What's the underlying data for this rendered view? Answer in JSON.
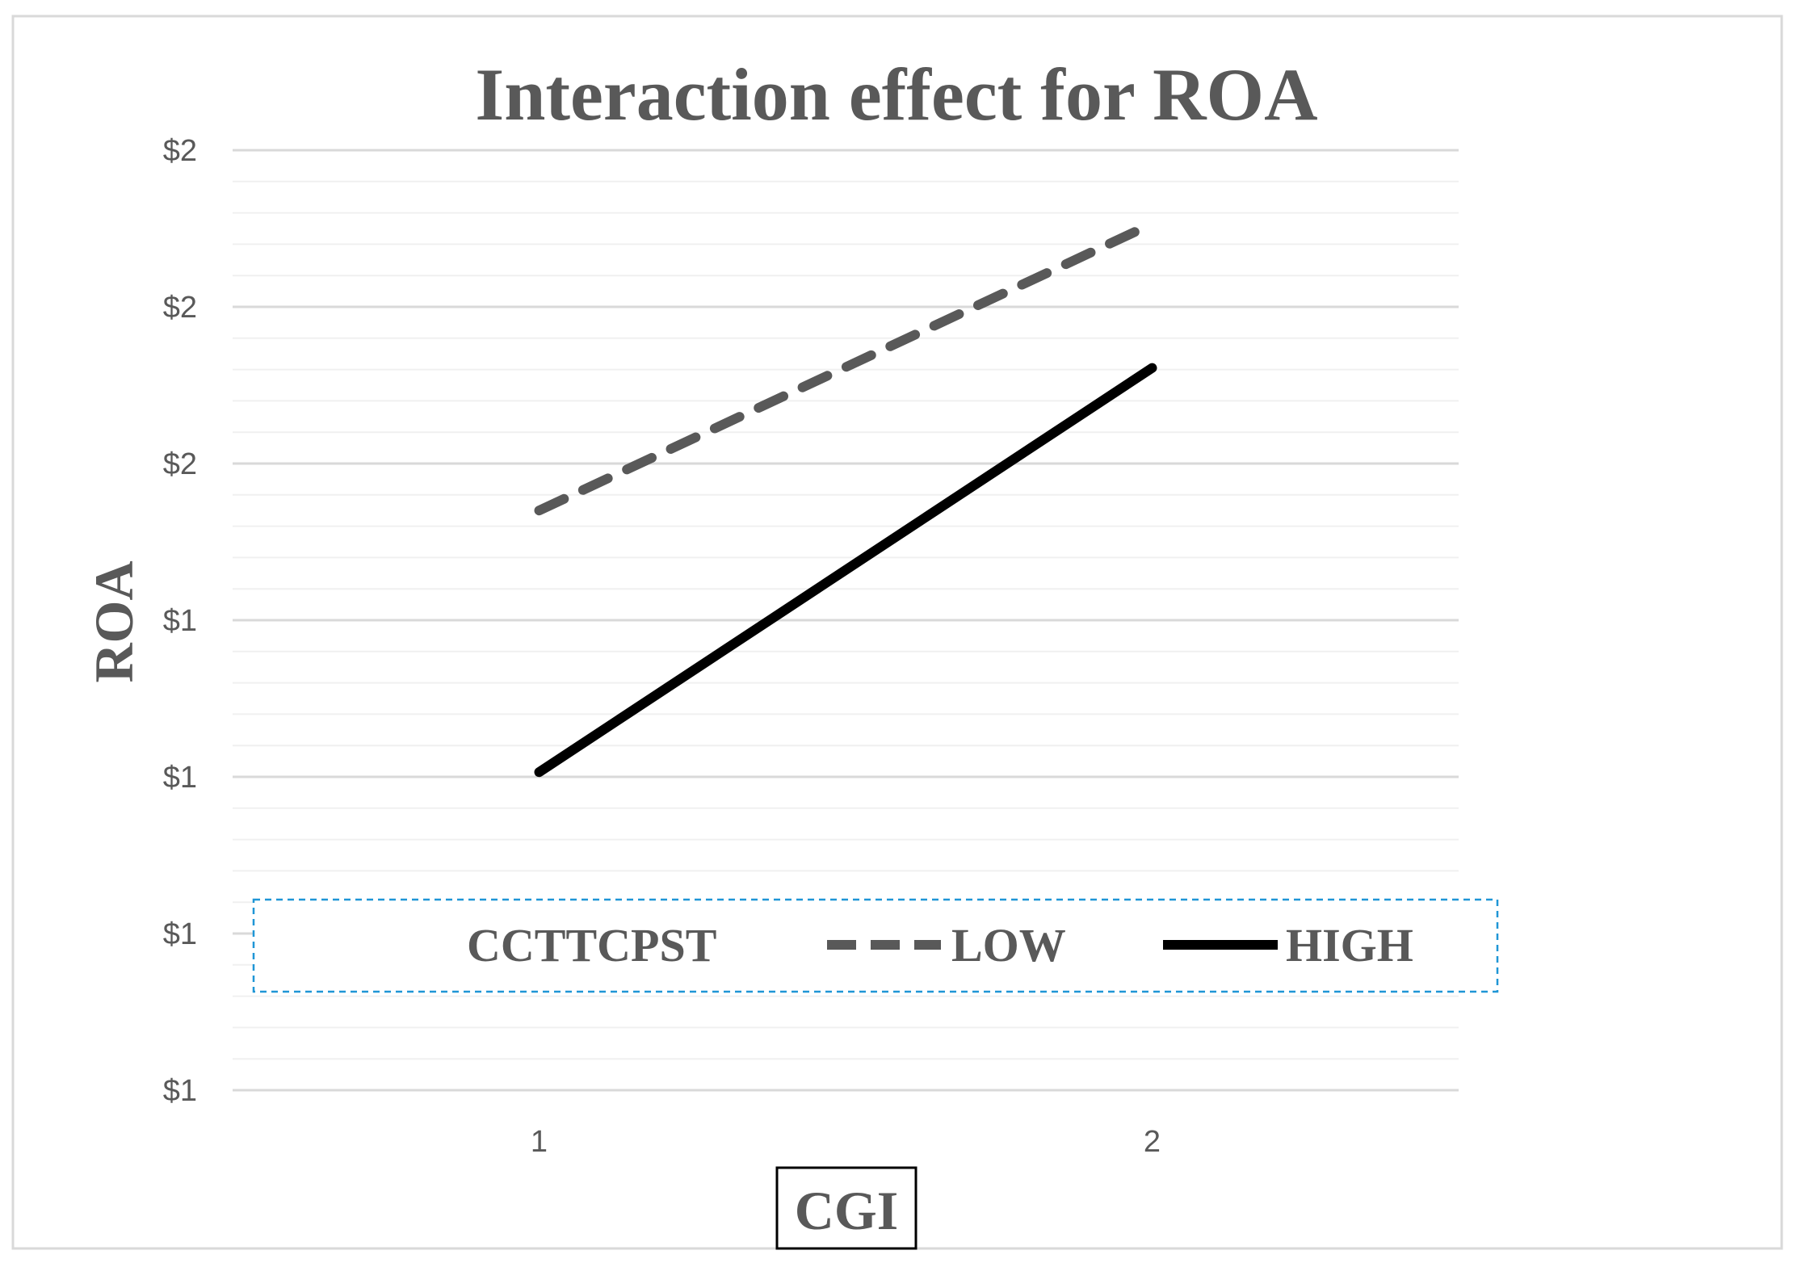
{
  "chart_data": {
    "type": "line",
    "title": "Interaction effect for ROA",
    "xlabel": "CGI",
    "ylabel": "ROA",
    "categories": [
      "1",
      "2"
    ],
    "y_ticks": [
      {
        "value": 1.1,
        "label": "$1"
      },
      {
        "value": 1.2,
        "label": "$1"
      },
      {
        "value": 1.3,
        "label": "$1"
      },
      {
        "value": 1.4,
        "label": "$1"
      },
      {
        "value": 1.5,
        "label": "$2"
      },
      {
        "value": 1.6,
        "label": "$2"
      },
      {
        "value": 1.7,
        "label": "$2"
      }
    ],
    "ylim": [
      1.1,
      1.7
    ],
    "minor_grid_step": 0.02,
    "legend": {
      "title": "CCTTCPST",
      "placement": "bottom"
    },
    "series": [
      {
        "name": "LOW",
        "values": [
          1.47,
          1.653
        ],
        "style": "dashed",
        "color": "#595959"
      },
      {
        "name": "HIGH",
        "values": [
          1.303,
          1.561
        ],
        "style": "solid",
        "color": "#000000"
      }
    ]
  }
}
